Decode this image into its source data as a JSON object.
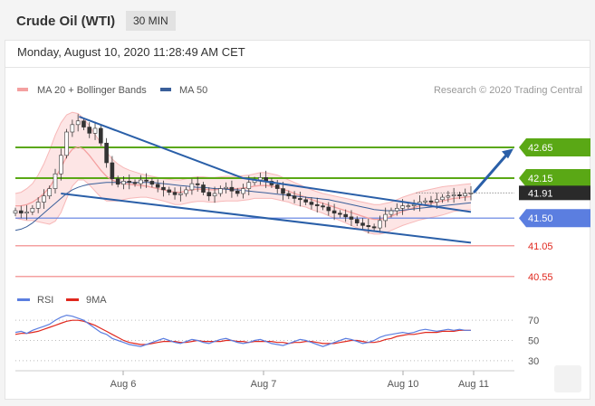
{
  "header": {
    "title": "Crude Oil (WTI)",
    "timeframe": "30 MIN",
    "timestamp": "Monday, August 10, 2020 11:28:49 AM CET"
  },
  "colors": {
    "ma20": "#f4a0a0",
    "ma50": "#3a5f9a",
    "bands_fill": "#fde0e0",
    "resistance": "#5aa815",
    "support": "#5b7ee0",
    "support_light": "#f08080",
    "rsi": "#5b7ee0",
    "rsi_ma": "#e0281e",
    "current_price": "#2a2a2a",
    "arrow": "#2a5fa8"
  },
  "chart_data": [
    {
      "type": "candlestick",
      "legend": [
        {
          "name": "MA 20 + Bollinger Bands",
          "color": "#f4a0a0"
        },
        {
          "name": "MA 50",
          "color": "#3a5f9a"
        }
      ],
      "source_note": "Research © 2020 Trading Central",
      "x_ticks": [
        "Aug 6",
        "Aug 7",
        "Aug 10",
        "Aug 11"
      ],
      "ylim": [
        40.4,
        43.4
      ],
      "close_path": [
        41.62,
        41.58,
        41.6,
        41.66,
        41.76,
        41.86,
        41.98,
        42.22,
        42.52,
        42.9,
        43.02,
        43.08,
        42.98,
        42.88,
        42.96,
        42.72,
        42.4,
        42.14,
        42.05,
        42.1,
        42.08,
        42.06,
        42.12,
        42.1,
        42.05,
        42.0,
        41.96,
        41.92,
        41.88,
        41.9,
        41.96,
        42.06,
        42.04,
        41.92,
        41.86,
        41.9,
        41.98,
        42.0,
        41.94,
        41.9,
        41.98,
        42.08,
        42.12,
        42.16,
        42.1,
        42.04,
        41.98,
        41.9,
        41.86,
        41.82,
        41.8,
        41.76,
        41.72,
        41.7,
        41.68,
        41.62,
        41.58,
        41.56,
        41.52,
        41.48,
        41.42,
        41.38,
        41.36,
        41.34,
        41.46,
        41.56,
        41.62,
        41.66,
        41.7,
        41.7,
        41.72,
        41.76,
        41.78,
        41.76,
        41.8,
        41.84,
        41.86,
        41.88,
        41.86,
        41.9,
        41.91
      ],
      "overlays": {
        "ma20_path": [
          41.7,
          41.7,
          41.72,
          41.76,
          41.82,
          41.9,
          42.0,
          42.15,
          42.32,
          42.5,
          42.62,
          42.66,
          42.62,
          42.52,
          42.4,
          42.28,
          42.18,
          42.12,
          42.08,
          42.06,
          42.05,
          42.04,
          42.03,
          42.02,
          42.0,
          41.98,
          41.96,
          41.94,
          41.92,
          41.92,
          41.94,
          41.96,
          41.97,
          41.97,
          41.96,
          41.96,
          41.97,
          41.98,
          41.98,
          41.98,
          41.99,
          42.0,
          42.02,
          42.03,
          42.03,
          42.02,
          42.0,
          41.97,
          41.94,
          41.9,
          41.87,
          41.84,
          41.8,
          41.77,
          41.74,
          41.71,
          41.68,
          41.65,
          41.62,
          41.59,
          41.56,
          41.53,
          41.5,
          41.48,
          41.48,
          41.5,
          41.53,
          41.57,
          41.61,
          41.64,
          41.67,
          41.7,
          41.72,
          41.74,
          41.76,
          41.78,
          41.8,
          41.82,
          41.83,
          41.84,
          41.85
        ],
        "band_upper_path": [
          41.9,
          41.92,
          41.98,
          42.06,
          42.2,
          42.38,
          42.6,
          42.85,
          43.05,
          43.18,
          43.22,
          43.2,
          43.12,
          43.0,
          42.86,
          42.72,
          42.58,
          42.46,
          42.38,
          42.32,
          42.28,
          42.25,
          42.22,
          42.2,
          42.18,
          42.16,
          42.14,
          42.13,
          42.12,
          42.12,
          42.14,
          42.16,
          42.17,
          42.17,
          42.16,
          42.16,
          42.17,
          42.18,
          42.18,
          42.18,
          42.19,
          42.2,
          42.22,
          42.24,
          42.24,
          42.22,
          42.2,
          42.16,
          42.12,
          42.08,
          42.04,
          42.0,
          41.96,
          41.93,
          41.9,
          41.88,
          41.86,
          41.84,
          41.82,
          41.8,
          41.78,
          41.76,
          41.74,
          41.72,
          41.72,
          41.74,
          41.76,
          41.8,
          41.84,
          41.87,
          41.9,
          41.93,
          41.95,
          41.97,
          41.99,
          42.01,
          42.02,
          42.03,
          42.04,
          42.05,
          42.06
        ],
        "band_lower_path": [
          41.5,
          41.48,
          41.46,
          41.46,
          41.44,
          41.42,
          41.4,
          41.45,
          41.59,
          41.82,
          42.02,
          42.12,
          42.12,
          42.04,
          41.94,
          41.84,
          41.78,
          41.78,
          41.78,
          41.8,
          41.82,
          41.83,
          41.84,
          41.84,
          41.82,
          41.8,
          41.78,
          41.75,
          41.72,
          41.72,
          41.74,
          41.76,
          41.77,
          41.77,
          41.76,
          41.76,
          41.77,
          41.78,
          41.78,
          41.78,
          41.79,
          41.8,
          41.82,
          41.82,
          41.82,
          41.82,
          41.8,
          41.78,
          41.76,
          41.72,
          41.7,
          41.68,
          41.64,
          41.61,
          41.58,
          41.54,
          41.5,
          41.46,
          41.42,
          41.38,
          41.34,
          41.3,
          41.26,
          41.24,
          41.24,
          41.26,
          41.3,
          41.34,
          41.38,
          41.41,
          41.44,
          41.47,
          41.49,
          41.51,
          41.53,
          41.55,
          41.58,
          41.61,
          41.62,
          41.63,
          41.64
        ],
        "ma50_path": [
          41.3,
          41.32,
          41.36,
          41.42,
          41.5,
          41.58,
          41.66,
          41.74,
          41.82,
          41.9,
          41.96,
          42.0,
          42.03,
          42.05,
          42.06,
          42.07,
          42.08,
          42.08,
          42.08,
          42.08,
          42.08,
          42.08,
          42.08,
          42.08,
          42.08,
          42.07,
          42.06,
          42.05,
          42.04,
          42.03,
          42.02,
          42.01,
          42.0,
          42.0,
          41.99,
          41.98,
          41.98,
          41.97,
          41.96,
          41.96,
          41.95,
          41.94,
          41.93,
          41.92,
          41.91,
          41.9,
          41.89,
          41.88,
          41.87,
          41.86,
          41.85,
          41.84,
          41.83,
          41.82,
          41.81,
          41.8,
          41.78,
          41.76,
          41.74,
          41.72,
          41.7,
          41.68,
          41.66,
          41.64,
          41.63,
          41.62,
          41.62,
          41.62,
          41.63,
          41.64,
          41.65,
          41.66,
          41.67,
          41.68,
          41.69,
          41.7,
          41.71,
          41.72,
          41.73,
          41.74,
          41.75
        ]
      },
      "channel": {
        "upper": [
          [
            0.14,
            43.15
          ],
          [
            0.5,
            42.15
          ],
          [
            1.0,
            41.6
          ]
        ],
        "lower": [
          [
            0.1,
            41.9
          ],
          [
            1.0,
            41.1
          ]
        ]
      },
      "levels": [
        {
          "value": 42.65,
          "label": "42.65",
          "kind": "resistance",
          "filled": true
        },
        {
          "value": 42.15,
          "label": "42.15",
          "kind": "resistance",
          "filled": true
        },
        {
          "value": 41.91,
          "label": "41.91",
          "kind": "current",
          "filled": true
        },
        {
          "value": 41.5,
          "label": "41.50",
          "kind": "support",
          "filled": true
        },
        {
          "value": 41.05,
          "label": "41.05",
          "kind": "support",
          "filled": false
        },
        {
          "value": 40.55,
          "label": "40.55",
          "kind": "support",
          "filled": false
        }
      ],
      "forecast_arrow": {
        "from": 41.93,
        "to": 42.63
      }
    },
    {
      "type": "line",
      "legend": [
        {
          "name": "RSI",
          "color": "#5b7ee0"
        },
        {
          "name": "9MA",
          "color": "#e0281e"
        }
      ],
      "ylim": [
        20,
        80
      ],
      "y_ticks": [
        70,
        50,
        30
      ],
      "rsi": [
        58,
        59,
        57,
        60,
        62,
        64,
        66,
        70,
        73,
        75,
        74,
        72,
        70,
        66,
        62,
        58,
        56,
        52,
        50,
        48,
        46,
        45,
        44,
        46,
        48,
        50,
        52,
        50,
        48,
        47,
        49,
        51,
        50,
        48,
        47,
        49,
        51,
        52,
        50,
        48,
        47,
        48,
        50,
        51,
        49,
        47,
        46,
        45,
        47,
        49,
        51,
        50,
        48,
        46,
        44,
        46,
        48,
        50,
        52,
        51,
        49,
        47,
        48,
        50,
        53,
        55,
        56,
        57,
        58,
        57,
        58,
        60,
        61,
        60,
        59,
        60,
        61,
        60,
        61,
        60,
        60
      ],
      "rsi_ma": [
        56,
        57,
        57,
        58,
        59,
        61,
        63,
        65,
        67,
        69,
        70,
        70,
        69,
        67,
        65,
        62,
        59,
        56,
        53,
        50,
        48,
        47,
        46,
        46,
        47,
        48,
        49,
        49,
        49,
        48,
        48,
        49,
        50,
        49,
        49,
        49,
        49,
        50,
        50,
        49,
        49,
        48,
        49,
        49,
        49,
        49,
        48,
        48,
        47,
        48,
        48,
        49,
        49,
        48,
        47,
        47,
        47,
        48,
        49,
        50,
        50,
        49,
        48,
        48,
        49,
        51,
        52,
        54,
        55,
        56,
        56,
        57,
        58,
        58,
        58,
        59,
        59,
        59,
        60,
        60,
        60
      ]
    }
  ]
}
